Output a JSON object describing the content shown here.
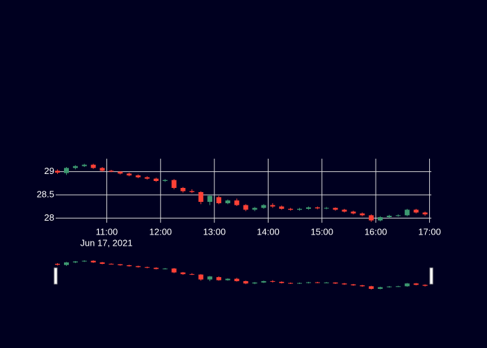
{
  "chart_data": {
    "type": "candlestick",
    "x": [
      "2021-06-17 10:05",
      "2021-06-17 10:15",
      "2021-06-17 10:25",
      "2021-06-17 10:35",
      "2021-06-17 10:45",
      "2021-06-17 10:55",
      "2021-06-17 11:05",
      "2021-06-17 11:15",
      "2021-06-17 11:25",
      "2021-06-17 11:35",
      "2021-06-17 11:45",
      "2021-06-17 11:55",
      "2021-06-17 12:05",
      "2021-06-17 12:15",
      "2021-06-17 12:25",
      "2021-06-17 12:35",
      "2021-06-17 12:45",
      "2021-06-17 12:55",
      "2021-06-17 13:05",
      "2021-06-17 13:15",
      "2021-06-17 13:25",
      "2021-06-17 13:35",
      "2021-06-17 13:45",
      "2021-06-17 13:55",
      "2021-06-17 14:05",
      "2021-06-17 14:15",
      "2021-06-17 14:25",
      "2021-06-17 14:35",
      "2021-06-17 14:45",
      "2021-06-17 14:55",
      "2021-06-17 15:05",
      "2021-06-17 15:15",
      "2021-06-17 15:25",
      "2021-06-17 15:35",
      "2021-06-17 15:45",
      "2021-06-17 15:55",
      "2021-06-17 16:05",
      "2021-06-17 16:15",
      "2021-06-17 16:25",
      "2021-06-17 16:35",
      "2021-06-17 16:45",
      "2021-06-17 16:55"
    ],
    "open": [
      29.02,
      28.97,
      29.08,
      29.12,
      29.15,
      29.08,
      29.02,
      29.0,
      28.96,
      28.92,
      28.88,
      28.85,
      28.8,
      28.82,
      28.65,
      28.58,
      28.56,
      28.35,
      28.45,
      28.32,
      28.38,
      28.28,
      28.18,
      28.22,
      28.28,
      28.25,
      28.2,
      28.18,
      28.2,
      28.23,
      28.21,
      28.22,
      28.18,
      28.14,
      28.1,
      28.06,
      27.95,
      28.02,
      28.05,
      28.06,
      28.18,
      28.12
    ],
    "high": [
      29.05,
      29.1,
      29.14,
      29.17,
      29.17,
      29.1,
      29.04,
      29.01,
      28.98,
      28.94,
      28.9,
      28.87,
      28.84,
      28.84,
      28.67,
      28.62,
      28.58,
      28.5,
      28.48,
      28.4,
      28.42,
      28.3,
      28.24,
      28.3,
      28.32,
      28.27,
      28.22,
      28.22,
      28.25,
      28.25,
      28.24,
      28.23,
      28.2,
      28.16,
      28.12,
      28.08,
      28.04,
      28.07,
      28.08,
      28.2,
      28.2,
      28.14
    ],
    "low": [
      28.95,
      28.93,
      29.05,
      29.1,
      29.06,
      29.0,
      28.99,
      28.94,
      28.9,
      28.86,
      28.83,
      28.78,
      28.78,
      28.62,
      28.55,
      28.54,
      28.3,
      28.28,
      28.3,
      28.3,
      28.26,
      28.15,
      28.15,
      28.2,
      28.22,
      28.18,
      28.16,
      28.16,
      28.18,
      28.19,
      28.19,
      28.16,
      28.12,
      28.08,
      28.04,
      27.92,
      27.93,
      28.0,
      28.03,
      28.04,
      28.1,
      28.05
    ],
    "close": [
      28.98,
      29.08,
      29.12,
      29.15,
      29.08,
      29.02,
      29.0,
      28.96,
      28.92,
      28.88,
      28.85,
      28.8,
      28.82,
      28.65,
      28.58,
      28.56,
      28.35,
      28.48,
      28.32,
      28.38,
      28.28,
      28.18,
      28.22,
      28.28,
      28.25,
      28.2,
      28.18,
      28.2,
      28.23,
      28.21,
      28.22,
      28.18,
      28.14,
      28.1,
      28.06,
      27.95,
      28.02,
      28.05,
      28.06,
      28.18,
      28.12,
      28.08
    ],
    "increasing_color": "#3d9970",
    "decreasing_color": "#ff4136",
    "xlim": [
      "2021-06-17 10:03",
      "2021-06-17 17:02"
    ],
    "xticks": [
      {
        "value": "2021-06-17 11:00",
        "label": "11:00"
      },
      {
        "value": "2021-06-17 12:00",
        "label": "12:00"
      },
      {
        "value": "2021-06-17 13:00",
        "label": "13:00"
      },
      {
        "value": "2021-06-17 14:00",
        "label": "14:00"
      },
      {
        "value": "2021-06-17 15:00",
        "label": "15:00"
      },
      {
        "value": "2021-06-17 16:00",
        "label": "16:00"
      },
      {
        "value": "2021-06-17 17:00",
        "label": "17:00"
      }
    ],
    "x_date_label": "Jun 17, 2021",
    "ylim": [
      27.9,
      29.28
    ],
    "yticks": [
      28,
      28.5,
      29
    ],
    "grid": true,
    "rangeslider": true
  }
}
